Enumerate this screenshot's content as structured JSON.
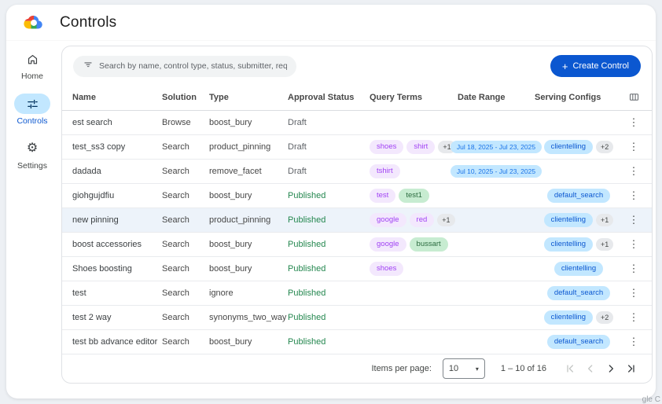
{
  "app": {
    "title": "Controls",
    "logo": "google-cloud"
  },
  "sidebar": {
    "items": [
      {
        "label": "Home",
        "icon": "home-icon",
        "active": false
      },
      {
        "label": "Controls",
        "icon": "tune-icon",
        "active": true
      },
      {
        "label": "Settings",
        "icon": "gear-icon",
        "active": false
      }
    ]
  },
  "toolbar": {
    "search_placeholder": "Search by name, control type, status, submitter, requested on",
    "create_plus": "+",
    "create_label": "Create Control"
  },
  "table": {
    "columns": [
      "Name",
      "Solution",
      "Type",
      "Approval Status",
      "Query Terms",
      "Date Range",
      "Serving Configs"
    ],
    "rows": [
      {
        "name": "est search",
        "solution": "Browse",
        "type": "boost_bury",
        "status": "Draft",
        "query_terms": [],
        "query_extra": "",
        "date_range": "",
        "serving_configs": [],
        "serving_extra": "",
        "highlighted": false
      },
      {
        "name": "test_ss3 copy",
        "solution": "Search",
        "type": "product_pinning",
        "status": "Draft",
        "query_terms": [
          {
            "label": "shoes",
            "color": "purple"
          },
          {
            "label": "shirt",
            "color": "purple"
          }
        ],
        "query_extra": "+1",
        "date_range": "Jul 18, 2025 - Jul 23, 2025",
        "serving_configs": [
          "clientelling"
        ],
        "serving_extra": "+2",
        "highlighted": false
      },
      {
        "name": "dadada",
        "solution": "Search",
        "type": "remove_facet",
        "status": "Draft",
        "query_terms": [
          {
            "label": "tshirt",
            "color": "purple"
          }
        ],
        "query_extra": "",
        "date_range": "Jul 10, 2025 - Jul 23, 2025",
        "serving_configs": [],
        "serving_extra": "",
        "highlighted": false
      },
      {
        "name": "giohgujdfiu",
        "solution": "Search",
        "type": "boost_bury",
        "status": "Published",
        "query_terms": [
          {
            "label": "test",
            "color": "purple"
          },
          {
            "label": "test1",
            "color": "green"
          }
        ],
        "query_extra": "",
        "date_range": "",
        "serving_configs": [
          "default_search"
        ],
        "serving_extra": "",
        "highlighted": false
      },
      {
        "name": "new pinning",
        "solution": "Search",
        "type": "product_pinning",
        "status": "Published",
        "query_terms": [
          {
            "label": "google",
            "color": "purple"
          },
          {
            "label": "red",
            "color": "purple"
          }
        ],
        "query_extra": "+1",
        "date_range": "",
        "serving_configs": [
          "clientelling"
        ],
        "serving_extra": "+1",
        "highlighted": true
      },
      {
        "name": "boost accessories",
        "solution": "Search",
        "type": "boost_bury",
        "status": "Published",
        "query_terms": [
          {
            "label": "google",
            "color": "purple"
          },
          {
            "label": "bussart",
            "color": "green"
          }
        ],
        "query_extra": "",
        "date_range": "",
        "serving_configs": [
          "clientelling"
        ],
        "serving_extra": "+1",
        "highlighted": false
      },
      {
        "name": "Shoes boosting",
        "solution": "Search",
        "type": "boost_bury",
        "status": "Published",
        "query_terms": [
          {
            "label": "shoes",
            "color": "purple"
          }
        ],
        "query_extra": "",
        "date_range": "",
        "serving_configs": [
          "clientelling"
        ],
        "serving_extra": "",
        "highlighted": false
      },
      {
        "name": "test",
        "solution": "Search",
        "type": "ignore",
        "status": "Published",
        "query_terms": [],
        "query_extra": "",
        "date_range": "",
        "serving_configs": [
          "default_search"
        ],
        "serving_extra": "",
        "highlighted": false
      },
      {
        "name": "test 2 way",
        "solution": "Search",
        "type": "synonyms_two_way",
        "status": "Published",
        "query_terms": [],
        "query_extra": "",
        "date_range": "",
        "serving_configs": [
          "clientelling"
        ],
        "serving_extra": "+2",
        "highlighted": false
      },
      {
        "name": "test bb advance editor",
        "solution": "Search",
        "type": "boost_bury",
        "status": "Published",
        "query_terms": [],
        "query_extra": "",
        "date_range": "",
        "serving_configs": [
          "default_search"
        ],
        "serving_extra": "",
        "highlighted": false
      }
    ]
  },
  "pagination": {
    "items_per_page_label": "Items per page:",
    "items_per_page": "10",
    "range_label": "1 – 10 of 16"
  },
  "icons": {
    "kebab": "⋮",
    "dropdown": "▾",
    "gear": "⚙"
  },
  "watermark": "gle C",
  "colors": {
    "accent": "#0b57d0",
    "active_pill": "#c2e7ff",
    "published": "#24874f",
    "chip_purple_bg": "#f3e8fd",
    "chip_purple_text": "#a142f4",
    "chip_green_bg": "#c7ecd1",
    "chip_blue_bg": "#c2e7ff",
    "row_highlight": "#edf3fa"
  }
}
